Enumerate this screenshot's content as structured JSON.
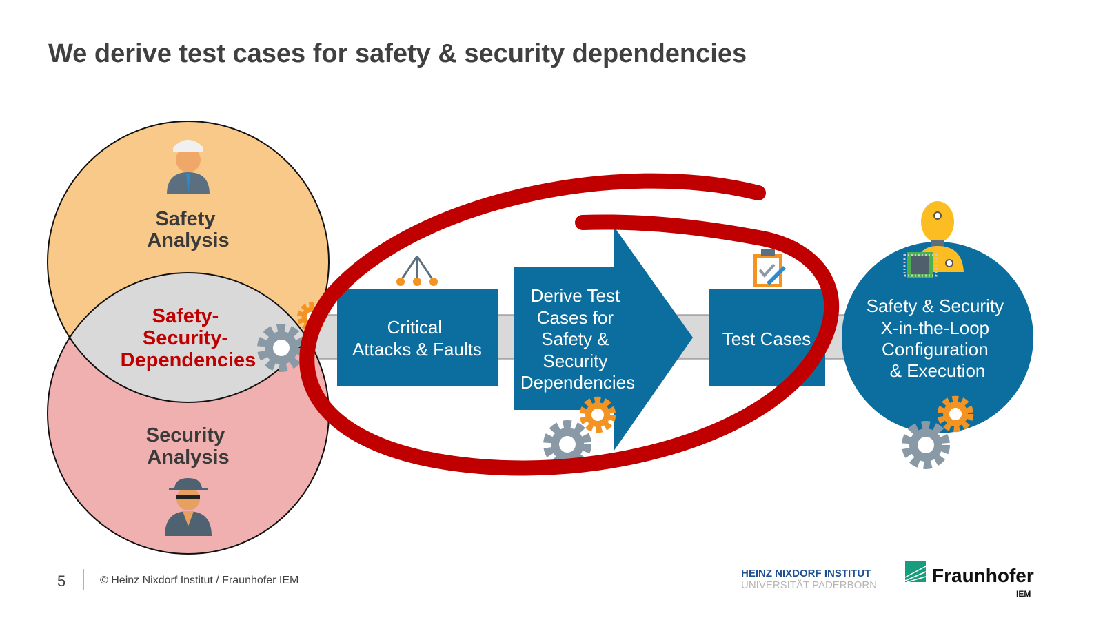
{
  "title": "We derive test cases for safety & security dependencies",
  "venn": {
    "safety": [
      "Safety",
      "Analysis"
    ],
    "dependencies": [
      "Safety-",
      "Security-",
      "Dependencies"
    ],
    "security": [
      "Security",
      "Analysis"
    ]
  },
  "process": {
    "step1": [
      "Critical",
      "Attacks & Faults"
    ],
    "step2": [
      "Derive Test",
      "Cases for",
      "Safety &",
      "Security",
      "Dependencies"
    ],
    "step3": [
      "Test Cases"
    ],
    "step4": [
      "Safety & Security",
      "X-in-the-Loop",
      "Configuration",
      "& Execution"
    ]
  },
  "footer": {
    "page_number": "5",
    "copyright": "© Heinz Nixdorf Institut / Fraunhofer IEM",
    "logo_hni_line1": "HEINZ NIXDORF INSTITUT",
    "logo_hni_line2": "UNIVERSITÄT PADERBORN",
    "logo_fraunhofer": "Fraunhofer",
    "logo_fraunhofer_sub": "IEM"
  },
  "colors": {
    "box_blue": "#0b6e9e",
    "highlight_red": "#c00000",
    "safety_fill": "#f9c98a",
    "security_fill": "#f0b0b0",
    "overlap_fill": "#d9d9d9"
  }
}
